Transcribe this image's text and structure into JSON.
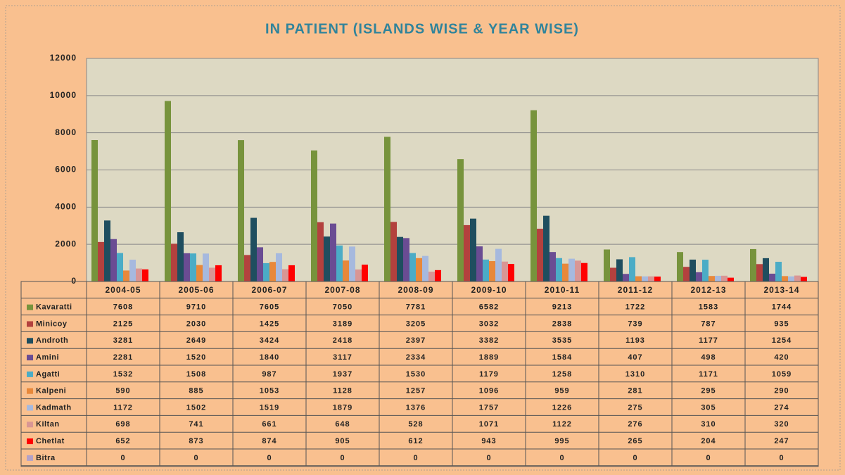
{
  "chart_data": {
    "type": "bar",
    "title": "IN PATIENT (ISLANDS WISE & YEAR WISE)",
    "categories": [
      "2004-05",
      "2005-06",
      "2006-07",
      "2007-08",
      "2008-09",
      "2009-10",
      "2010-11",
      "2011-12",
      "2012-13",
      "2013-14"
    ],
    "series": [
      {
        "name": "Kavaratti",
        "color": "#77933C",
        "values": [
          7608,
          9710,
          7605,
          7050,
          7781,
          6582,
          9213,
          1722,
          1583,
          1744
        ]
      },
      {
        "name": "Minicoy",
        "color": "#B3413E",
        "values": [
          2125,
          2030,
          1425,
          3189,
          3205,
          3032,
          2838,
          739,
          787,
          935
        ]
      },
      {
        "name": "Androth",
        "color": "#1F4E5F",
        "values": [
          3281,
          2649,
          3424,
          2418,
          2397,
          3382,
          3535,
          1193,
          1177,
          1254
        ]
      },
      {
        "name": "Amini",
        "color": "#6A4C93",
        "values": [
          2281,
          1520,
          1840,
          3117,
          2334,
          1889,
          1584,
          407,
          498,
          420
        ]
      },
      {
        "name": "Agatti",
        "color": "#4BACC6",
        "values": [
          1532,
          1508,
          987,
          1937,
          1530,
          1179,
          1258,
          1310,
          1171,
          1059
        ]
      },
      {
        "name": "Kalpeni",
        "color": "#E8883A",
        "values": [
          590,
          885,
          1053,
          1128,
          1257,
          1096,
          959,
          281,
          295,
          290
        ]
      },
      {
        "name": "Kadmath",
        "color": "#A6B9DE",
        "values": [
          1172,
          1502,
          1519,
          1879,
          1376,
          1757,
          1226,
          275,
          305,
          274
        ]
      },
      {
        "name": "Kiltan",
        "color": "#D99694",
        "values": [
          698,
          741,
          661,
          648,
          528,
          1071,
          1122,
          276,
          310,
          320
        ]
      },
      {
        "name": "Chetlat",
        "color": "#FF0000",
        "values": [
          652,
          873,
          874,
          905,
          612,
          943,
          995,
          265,
          204,
          247
        ]
      },
      {
        "name": "Bitra",
        "color": "#B3A2C7",
        "values": [
          0,
          0,
          0,
          0,
          0,
          0,
          0,
          0,
          0,
          0
        ]
      }
    ],
    "ylim": [
      0,
      12000
    ],
    "yticks": [
      0,
      2000,
      4000,
      6000,
      8000,
      10000,
      12000
    ],
    "grid": true
  }
}
